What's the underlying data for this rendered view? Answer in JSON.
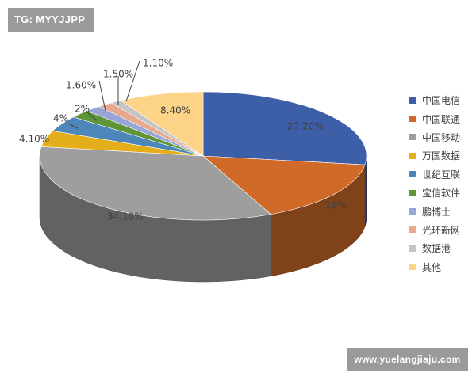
{
  "badges": {
    "tg": "TG: MYYJJPP",
    "site": "www.yuelangjiaju.com"
  },
  "chart_data": {
    "type": "pie",
    "style": "3d",
    "legend_position": "right",
    "slices": [
      {
        "label": "中国电信",
        "value": 27.2,
        "value_label": "27.20%",
        "color": "#3d5fa8"
      },
      {
        "label": "中国联通",
        "value": 16.0,
        "value_label": "16%",
        "color": "#cf6a28"
      },
      {
        "label": "中国移动",
        "value": 34.1,
        "value_label": "34.10%",
        "color": "#9e9e9e"
      },
      {
        "label": "万国数据",
        "value": 4.1,
        "value_label": "4.10%",
        "color": "#e3ae1a"
      },
      {
        "label": "世纪互联",
        "value": 4.0,
        "value_label": "4%",
        "color": "#4d86b9"
      },
      {
        "label": "宝信软件",
        "value": 2.0,
        "value_label": "2%",
        "color": "#5f9437"
      },
      {
        "label": "鹏博士",
        "value": 1.6,
        "value_label": "1.60%",
        "color": "#98a6d6"
      },
      {
        "label": "光环新网",
        "value": 1.5,
        "value_label": "1.50%",
        "color": "#e8a98e"
      },
      {
        "label": "数据港",
        "value": 1.1,
        "value_label": "1.10%",
        "color": "#c4c4c4"
      },
      {
        "label": "其他",
        "value": 8.4,
        "value_label": "8.40%",
        "color": "#fcd387"
      }
    ]
  }
}
